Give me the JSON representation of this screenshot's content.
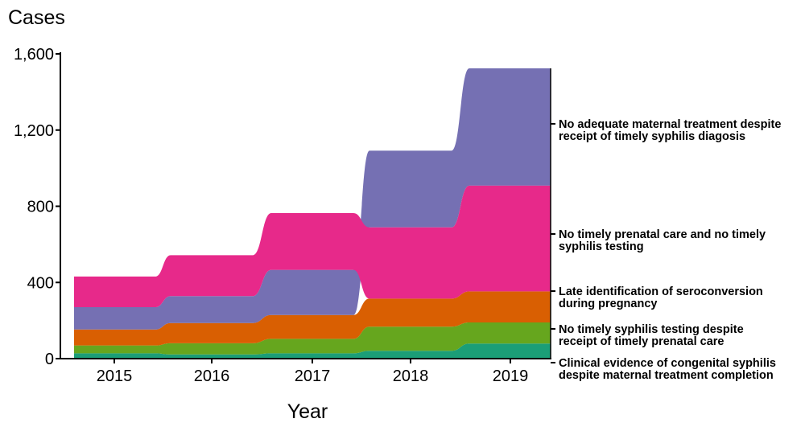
{
  "chart_data": {
    "type": "area",
    "subtype": "stacked ranked alluvial (layers sorted by value within each year)",
    "title": "",
    "xlabel": "Year",
    "ylabel": "Cases",
    "categories": [
      "2015",
      "2016",
      "2017",
      "2018",
      "2019"
    ],
    "ylim": [
      0,
      1600
    ],
    "yticks": [
      0,
      400,
      800,
      1200,
      1600
    ],
    "ytick_labels": [
      "0",
      "400",
      "800",
      "1,200",
      "1,600"
    ],
    "grid": false,
    "legend": "right (direct labels)",
    "series": [
      {
        "name": "Clinical evidence of congenital syphilis despite maternal treatment completion",
        "label_lines": [
          "Clinical evidence of congenital syphilis",
          "despite maternal treatment completion"
        ],
        "color": "#1b9e77",
        "values": [
          28,
          22,
          28,
          41,
          79
        ]
      },
      {
        "name": "No timely syphilis testing despite receipt of timely prenatal care",
        "label_lines": [
          "No timely syphilis testing despite",
          "receipt of timely prenatal care"
        ],
        "color": "#66a61e",
        "values": [
          41,
          59,
          76,
          127,
          111
        ]
      },
      {
        "name": "Late identification of seroconversion during pregnancy",
        "label_lines": [
          "Late identification of seroconversion",
          "during pregnancy"
        ],
        "color": "#d95f02",
        "values": [
          84,
          106,
          125,
          147,
          163
        ]
      },
      {
        "name": "No adequate maternal treatment despite receipt of timely syphilis diagosis",
        "label_lines": [
          "No adequate maternal treatment despite",
          "receipt of timely syphilis diagosis"
        ],
        "color": "#7570b3",
        "values": [
          117,
          141,
          237,
          403,
          616
        ]
      },
      {
        "name": "No timely prenatal care and no timely syphilis testing",
        "label_lines": [
          "No timely prenatal care and no timely",
          "syphilis testing"
        ],
        "color": "#e7298a",
        "values": [
          161,
          215,
          298,
          374,
          555
        ]
      }
    ]
  }
}
